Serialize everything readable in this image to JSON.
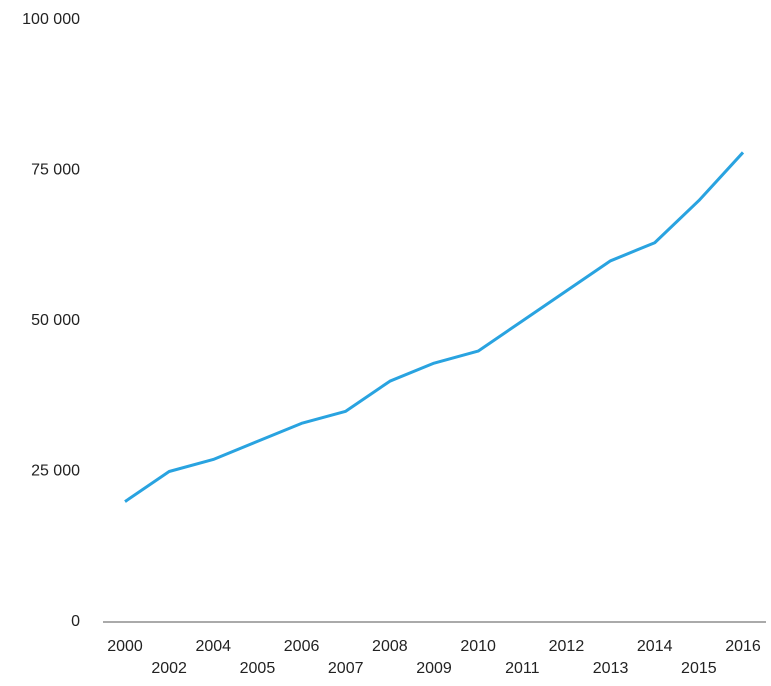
{
  "chart_data": {
    "type": "line",
    "categories": [
      "2000",
      "2002",
      "2004",
      "2005",
      "2006",
      "2007",
      "2008",
      "2009",
      "2010",
      "2011",
      "2012",
      "2013",
      "2014",
      "2015",
      "2016"
    ],
    "values": [
      20000,
      25000,
      27000,
      30000,
      33000,
      35000,
      40000,
      43000,
      45000,
      50000,
      55000,
      60000,
      63000,
      70000,
      78000
    ],
    "color": "#29a3e0",
    "ylim": [
      0,
      100000
    ],
    "yticks": [
      0,
      {
        "value": 25000,
        "label": "25 000"
      },
      {
        "value": 50000,
        "label": "50 000"
      },
      {
        "value": 75000,
        "label": "75 000"
      },
      {
        "value": 100000,
        "label": "100 000"
      }
    ]
  }
}
